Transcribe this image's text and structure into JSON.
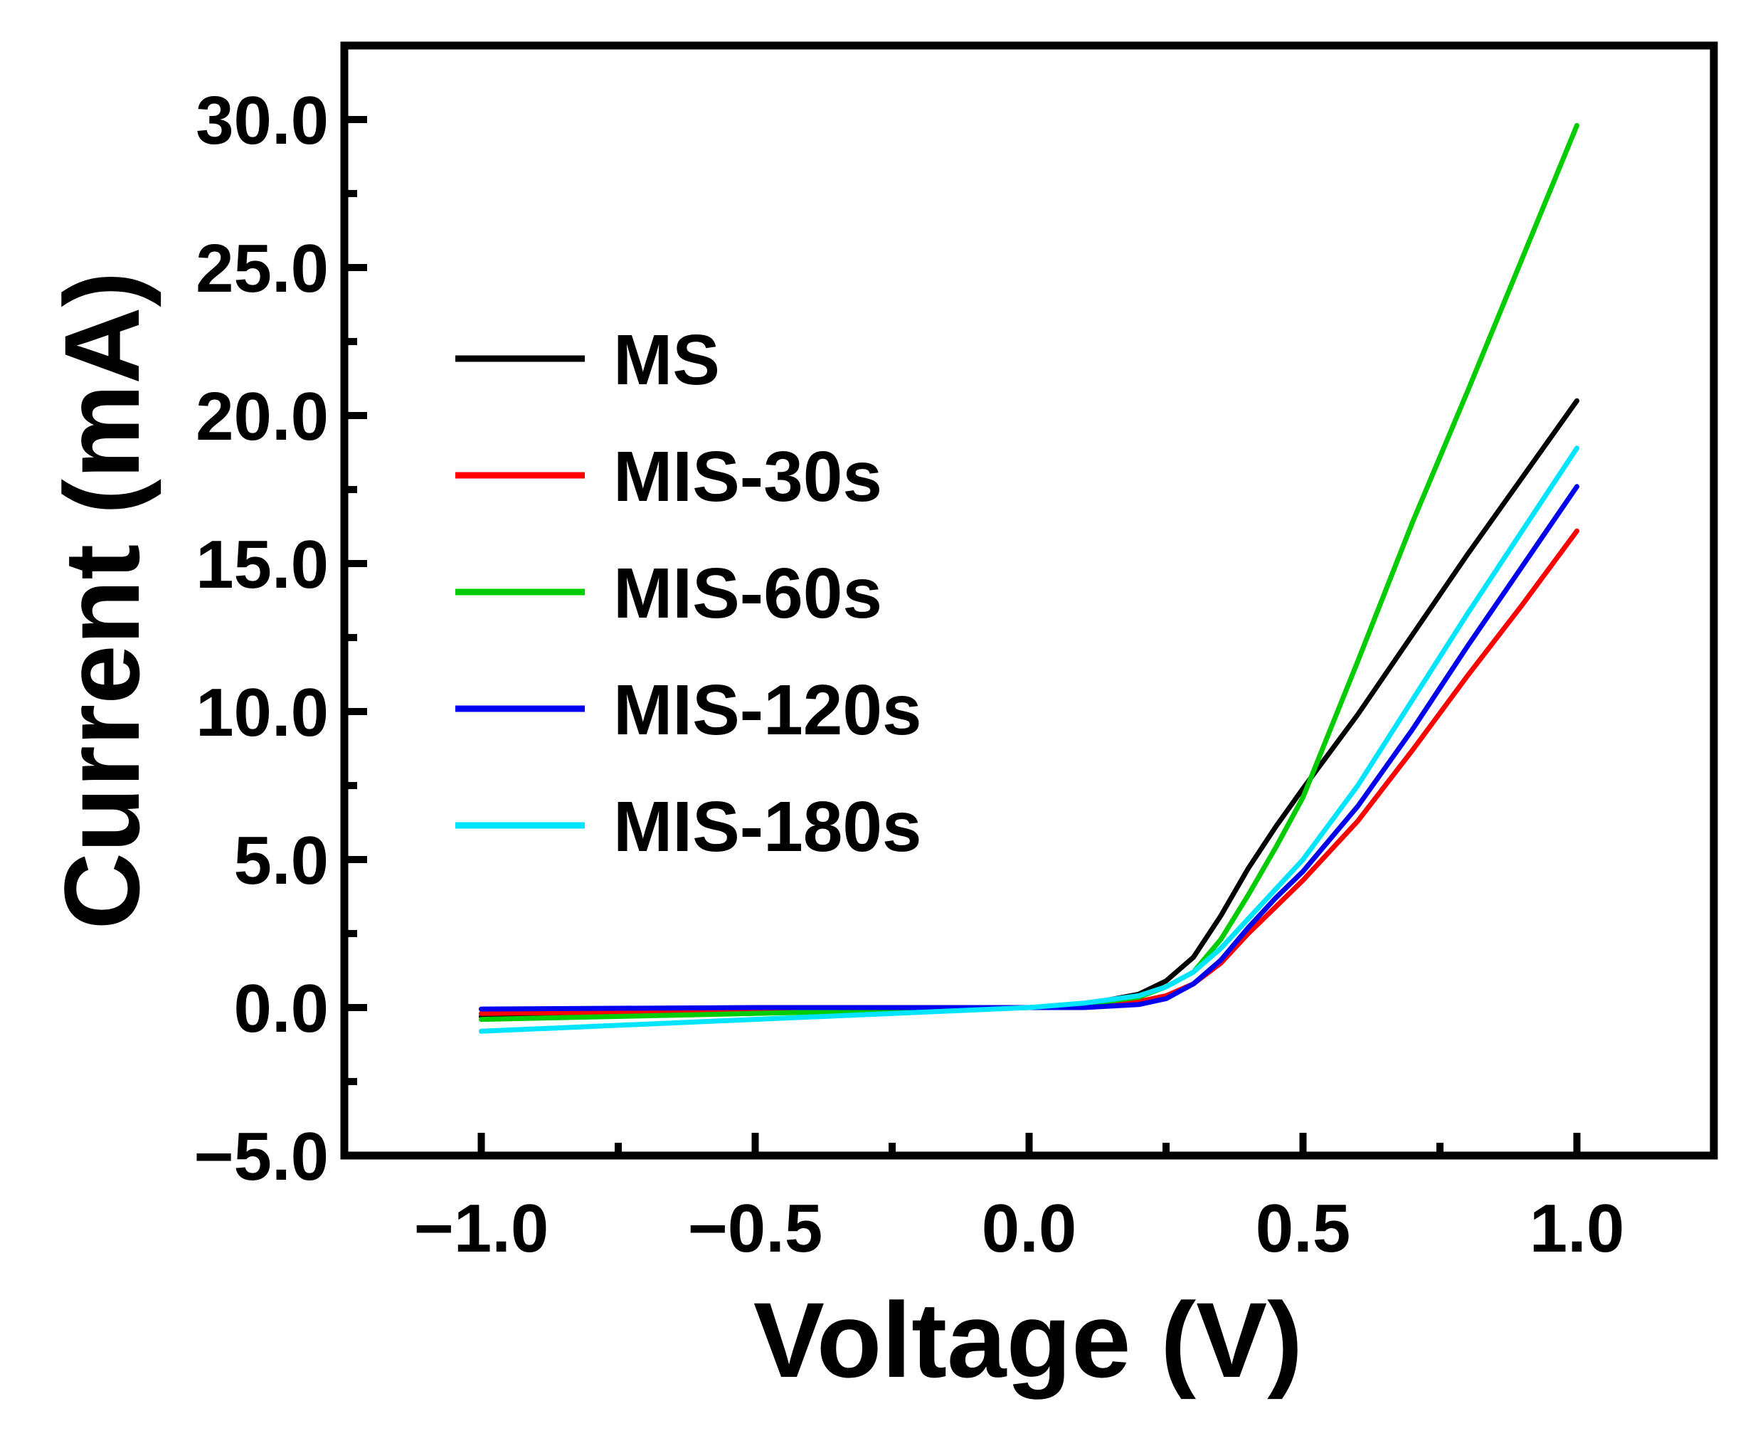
{
  "chart_data": {
    "type": "line",
    "title": "",
    "xlabel": "Voltage (V)",
    "ylabel": "Current (mA)",
    "xlim": [
      -1.25,
      1.25
    ],
    "ylim": [
      -5.0,
      32.5
    ],
    "x_ticks": [
      -1.0,
      -0.5,
      0.0,
      0.5,
      1.0
    ],
    "x_tick_labels": [
      "−1.0",
      "−0.5",
      "0.0",
      "0.5",
      "1.0"
    ],
    "x_minor_ticks": [
      -0.75,
      -0.25,
      0.25,
      0.75
    ],
    "y_ticks": [
      -5.0,
      0.0,
      5.0,
      10.0,
      15.0,
      20.0,
      25.0,
      30.0
    ],
    "y_tick_labels": [
      "−5.0",
      "0.0",
      "5.0",
      "10.0",
      "15.0",
      "20.0",
      "25.0",
      "30.0"
    ],
    "y_minor_ticks": [
      -2.5,
      2.5,
      7.5,
      12.5,
      17.5,
      22.5,
      27.5
    ],
    "grid": false,
    "legend_position": "upper-left",
    "series": [
      {
        "name": "MS",
        "color": "#000000",
        "x": [
          -1.0,
          -0.5,
          0.0,
          0.1,
          0.2,
          0.25,
          0.3,
          0.35,
          0.4,
          0.45,
          0.5,
          0.6,
          0.7,
          0.8,
          0.9,
          1.0
        ],
        "y": [
          -0.3,
          -0.15,
          0.0,
          0.1,
          0.45,
          0.9,
          1.7,
          3.1,
          4.7,
          6.1,
          7.4,
          9.9,
          12.6,
          15.3,
          17.9,
          20.5
        ]
      },
      {
        "name": "MIS-30s",
        "color": "#ff0000",
        "x": [
          -1.0,
          -0.5,
          0.0,
          0.1,
          0.2,
          0.25,
          0.3,
          0.35,
          0.4,
          0.45,
          0.5,
          0.6,
          0.7,
          0.8,
          0.9,
          1.0
        ],
        "y": [
          -0.2,
          -0.1,
          0.0,
          0.05,
          0.2,
          0.4,
          0.8,
          1.5,
          2.5,
          3.4,
          4.3,
          6.3,
          8.7,
          11.2,
          13.6,
          16.1
        ]
      },
      {
        "name": "MIS-60s",
        "color": "#00cc00",
        "x": [
          -1.0,
          -0.5,
          0.0,
          0.1,
          0.2,
          0.25,
          0.3,
          0.35,
          0.4,
          0.45,
          0.5,
          0.6,
          0.7,
          0.8,
          0.9,
          1.0
        ],
        "y": [
          -0.4,
          -0.2,
          0.0,
          0.1,
          0.35,
          0.7,
          1.2,
          2.3,
          3.8,
          5.4,
          7.1,
          11.7,
          16.4,
          20.8,
          25.3,
          29.8
        ]
      },
      {
        "name": "MIS-120s",
        "color": "#0000ee",
        "x": [
          -1.0,
          -0.5,
          0.0,
          0.1,
          0.2,
          0.25,
          0.3,
          0.35,
          0.4,
          0.45,
          0.5,
          0.6,
          0.7,
          0.8,
          0.9,
          1.0
        ],
        "y": [
          -0.05,
          0.0,
          0.0,
          0.0,
          0.1,
          0.3,
          0.8,
          1.6,
          2.7,
          3.7,
          4.6,
          6.8,
          9.4,
          12.2,
          14.9,
          17.6
        ]
      },
      {
        "name": "MIS-180s",
        "color": "#00e5ff",
        "x": [
          -1.0,
          -0.5,
          0.0,
          0.1,
          0.2,
          0.25,
          0.3,
          0.35,
          0.4,
          0.45,
          0.5,
          0.6,
          0.7,
          0.8,
          0.9,
          1.0
        ],
        "y": [
          -0.8,
          -0.4,
          0.0,
          0.15,
          0.4,
          0.7,
          1.2,
          2.0,
          3.0,
          4.0,
          5.0,
          7.5,
          10.4,
          13.3,
          16.1,
          18.9
        ]
      }
    ]
  }
}
